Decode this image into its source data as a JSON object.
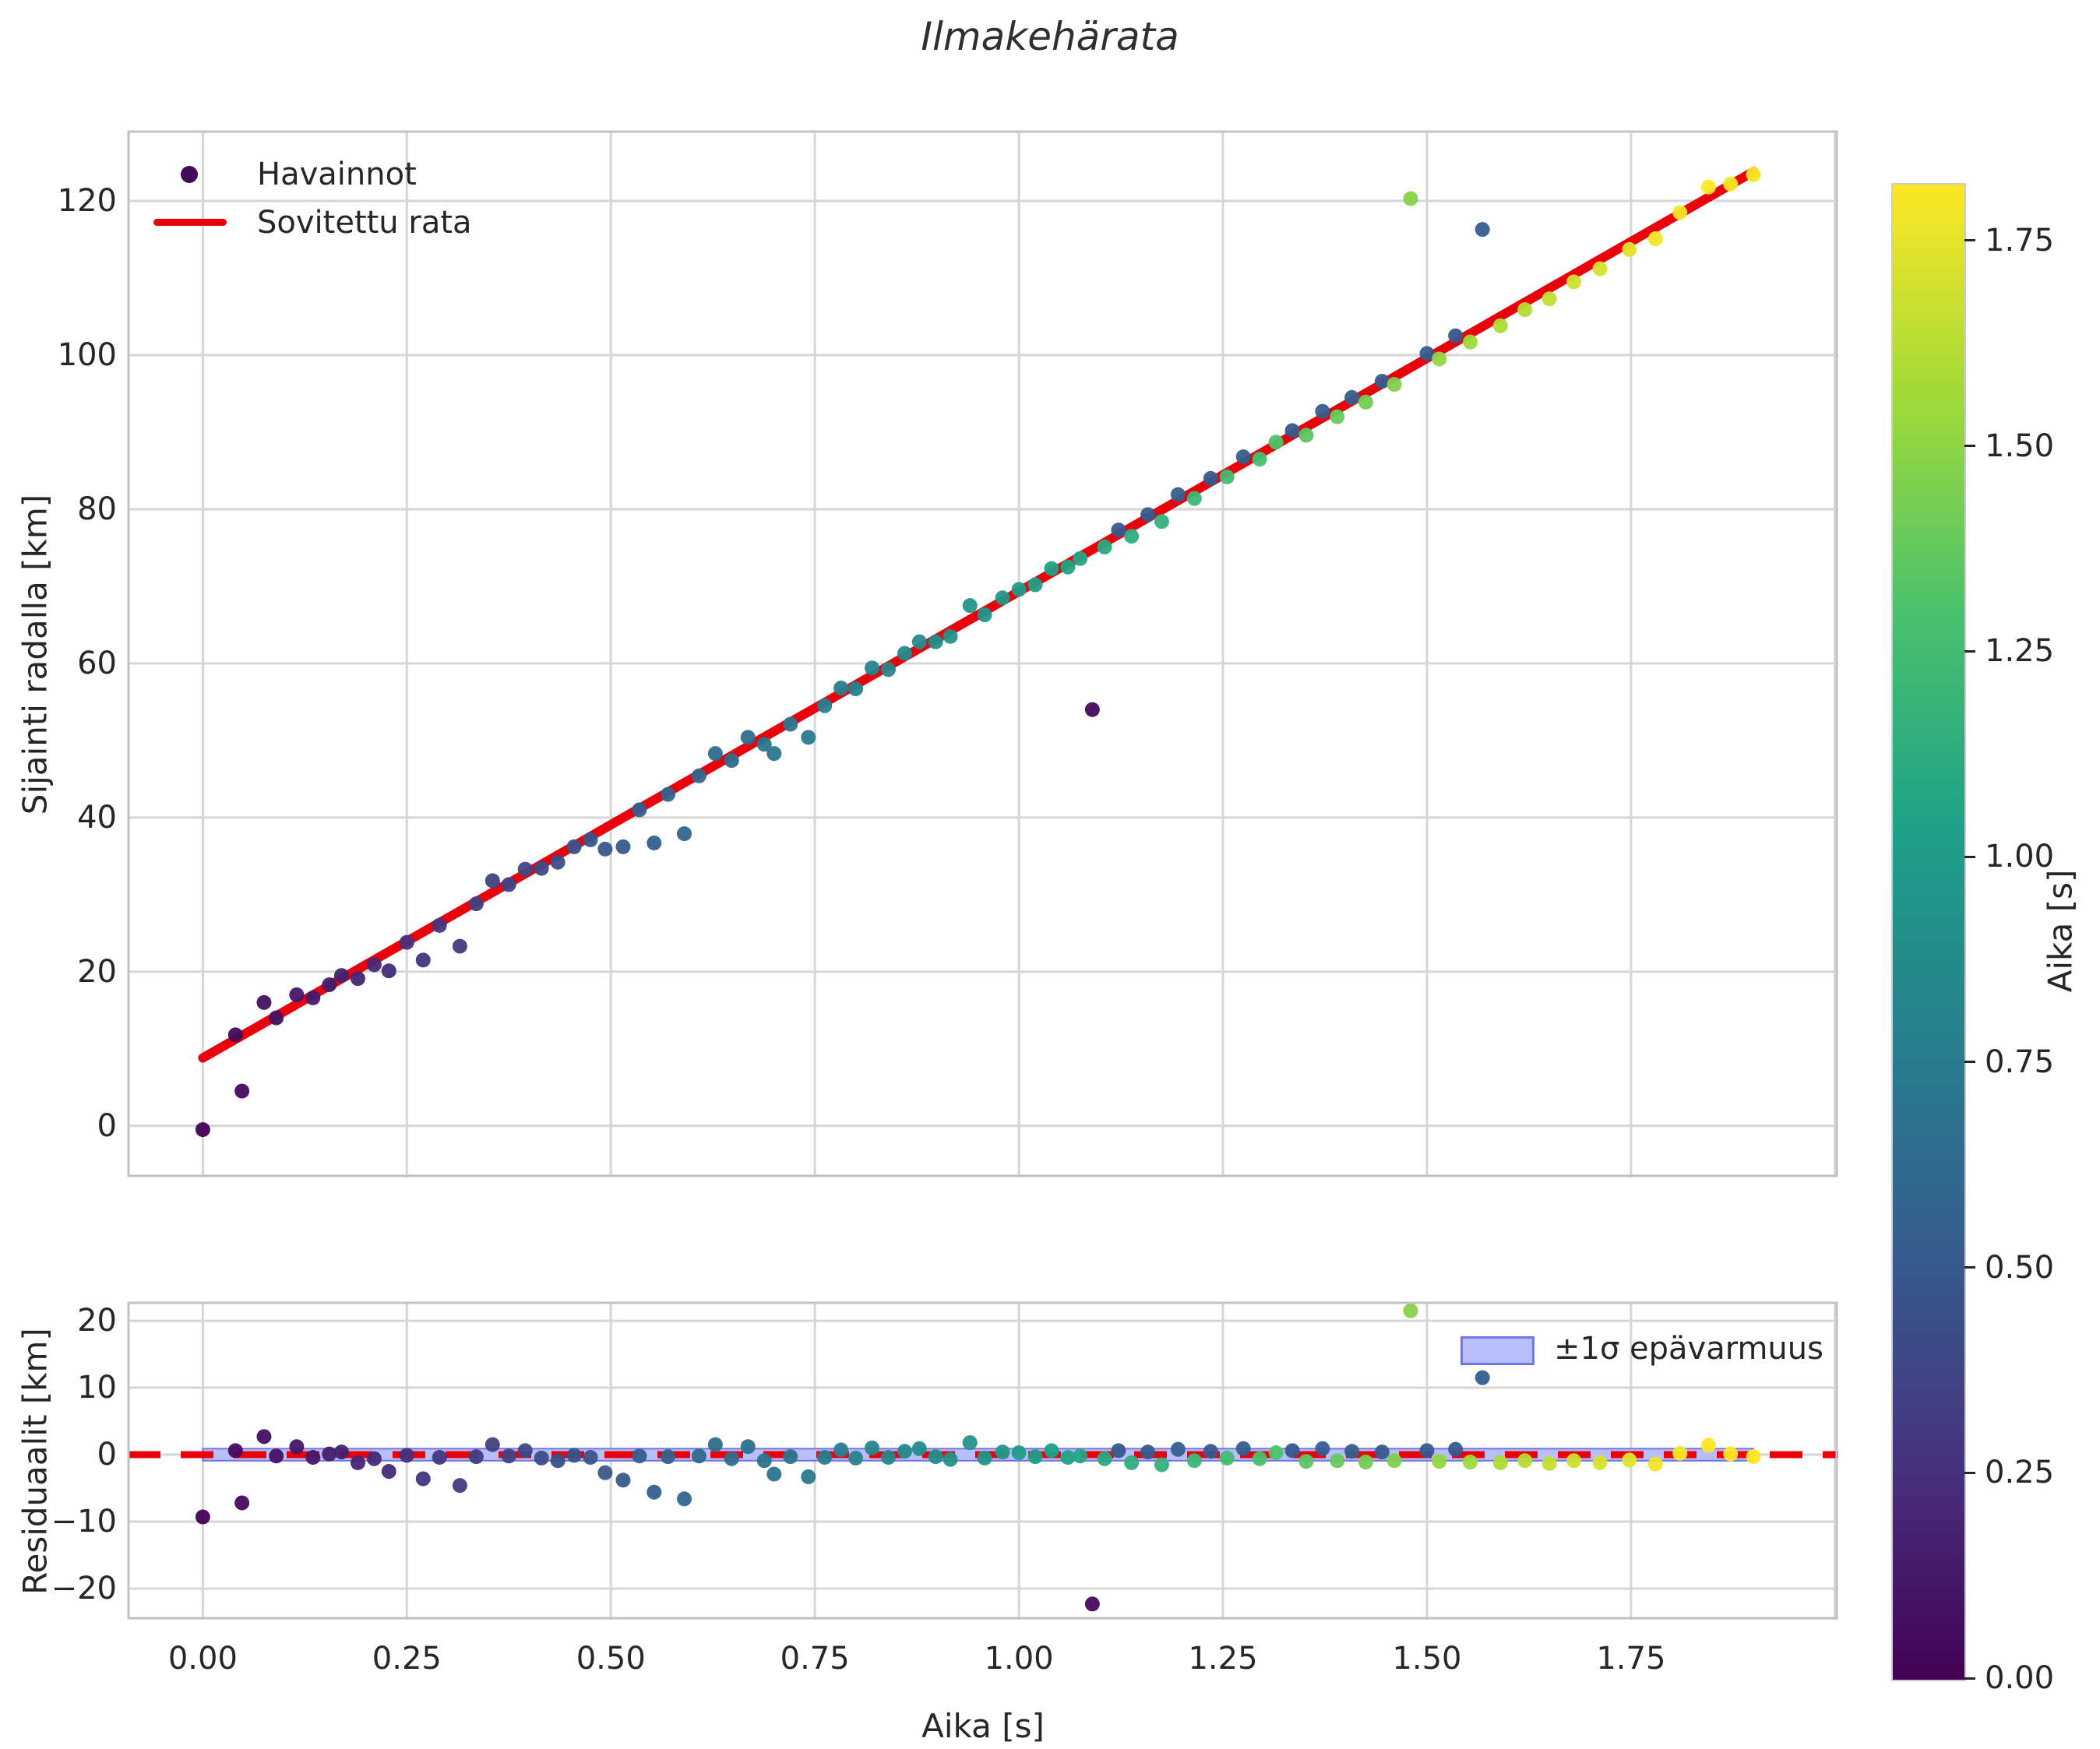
{
  "title": "Ilmakehärata",
  "labels": {
    "main_ylabel": "Sijainti radalla [km]",
    "residual_ylabel": "Residuaalit [km]",
    "xlabel": "Aika [s]",
    "colorbar_label": "Aika [s]"
  },
  "legend": {
    "observations": "Havainnot",
    "fit": "Sovitettu rata",
    "band": "±1σ epävarmuus"
  },
  "colors": {
    "fit_line": "#e8000b",
    "zero_line": "#e8000b",
    "band_fill": "#b8bef9",
    "band_edge": "#7076e8",
    "grid": "#d6d6d6",
    "spine": "#c2c2c2",
    "text": "#262626",
    "legend_marker": "#440c56",
    "background": "#ffffff"
  },
  "chart_data": {
    "type": "scatter",
    "suptitle": "Ilmakehärata",
    "viridis_stops": [
      "#440154",
      "#46327e",
      "#365c8d",
      "#277f8e",
      "#1fa187",
      "#4ac16d",
      "#a0da39",
      "#fde725"
    ],
    "color_vmin": 0,
    "color_vmax": 1.82,
    "points_fields": [
      "t_s",
      "position_km",
      "residual_km",
      "color_value_null_means_t"
    ],
    "points": [
      [
        0.0,
        -0.5,
        -9.3,
        null
      ],
      [
        0.04,
        11.8,
        0.6,
        null
      ],
      [
        0.048,
        4.5,
        -7.2,
        null
      ],
      [
        0.075,
        16.0,
        2.7,
        null
      ],
      [
        0.09,
        14.0,
        -0.2,
        null
      ],
      [
        0.115,
        17.0,
        1.2,
        null
      ],
      [
        0.135,
        16.6,
        -0.4,
        null
      ],
      [
        0.155,
        18.3,
        0.1,
        null
      ],
      [
        0.17,
        19.5,
        0.4,
        null
      ],
      [
        0.19,
        19.1,
        -1.2,
        null
      ],
      [
        0.21,
        20.9,
        -0.6,
        null
      ],
      [
        0.228,
        20.1,
        -2.5,
        null
      ],
      [
        0.25,
        23.8,
        -0.1,
        null
      ],
      [
        0.27,
        21.5,
        -3.6,
        null
      ],
      [
        0.29,
        26.0,
        -0.4,
        null
      ],
      [
        0.315,
        23.3,
        -4.6,
        null
      ],
      [
        0.335,
        28.8,
        -0.3,
        null
      ],
      [
        0.355,
        31.8,
        1.5,
        null
      ],
      [
        0.375,
        31.3,
        -0.2,
        null
      ],
      [
        0.395,
        33.3,
        0.6,
        null
      ],
      [
        0.415,
        33.4,
        -0.5,
        null
      ],
      [
        0.435,
        34.2,
        -0.9,
        null
      ],
      [
        0.455,
        36.2,
        -0.1,
        null
      ],
      [
        0.475,
        37.1,
        -0.4,
        null
      ],
      [
        0.493,
        35.9,
        -2.7,
        null
      ],
      [
        0.515,
        36.2,
        -3.8,
        null
      ],
      [
        0.535,
        41.0,
        -0.2,
        null
      ],
      [
        0.553,
        36.7,
        -5.6,
        null
      ],
      [
        0.57,
        43.0,
        -0.3,
        null
      ],
      [
        0.59,
        37.9,
        -6.6,
        null
      ],
      [
        0.608,
        45.4,
        -0.2,
        null
      ],
      [
        0.628,
        48.3,
        1.5,
        null
      ],
      [
        0.648,
        47.4,
        -0.6,
        null
      ],
      [
        0.668,
        50.4,
        1.2,
        null
      ],
      [
        0.688,
        49.5,
        -0.9,
        null
      ],
      [
        0.7,
        48.3,
        -2.9,
        null
      ],
      [
        0.72,
        52.1,
        -0.3,
        null
      ],
      [
        0.742,
        50.4,
        -3.3,
        null
      ],
      [
        0.762,
        54.5,
        -0.4,
        null
      ],
      [
        0.782,
        56.8,
        0.7,
        null
      ],
      [
        0.8,
        56.7,
        -0.5,
        null
      ],
      [
        0.82,
        59.4,
        1.0,
        null
      ],
      [
        0.84,
        59.2,
        -0.4,
        null
      ],
      [
        0.86,
        61.3,
        0.5,
        null
      ],
      [
        0.878,
        62.8,
        0.9,
        null
      ],
      [
        0.898,
        62.8,
        -0.3,
        null
      ],
      [
        0.916,
        63.5,
        -0.7,
        null
      ],
      [
        0.94,
        67.5,
        1.8,
        null
      ],
      [
        0.958,
        66.3,
        -0.5,
        null
      ],
      [
        0.98,
        68.5,
        0.4,
        null
      ],
      [
        1.0,
        69.6,
        0.3,
        null
      ],
      [
        1.02,
        70.2,
        -0.3,
        null
      ],
      [
        1.04,
        72.3,
        0.6,
        null
      ],
      [
        1.06,
        72.5,
        -0.4,
        null
      ],
      [
        1.075,
        73.6,
        -0.2,
        null
      ],
      [
        1.09,
        54.0,
        -22.3,
        0.05
      ],
      [
        1.105,
        75.1,
        -0.6,
        null
      ],
      [
        1.122,
        77.3,
        0.6,
        0.5
      ],
      [
        1.138,
        76.5,
        -1.2,
        null
      ],
      [
        1.158,
        79.3,
        0.4,
        0.52
      ],
      [
        1.175,
        78.4,
        -1.5,
        null
      ],
      [
        1.195,
        81.9,
        0.8,
        0.55
      ],
      [
        1.215,
        81.4,
        -0.9,
        null
      ],
      [
        1.235,
        84.0,
        0.5,
        0.5
      ],
      [
        1.255,
        84.2,
        -0.5,
        null
      ],
      [
        1.275,
        86.8,
        0.9,
        0.53
      ],
      [
        1.295,
        86.5,
        -0.6,
        null
      ],
      [
        1.315,
        88.7,
        0.3,
        null
      ],
      [
        1.335,
        90.2,
        0.6,
        0.5
      ],
      [
        1.352,
        89.6,
        -1.0,
        null
      ],
      [
        1.372,
        92.7,
        0.9,
        0.52
      ],
      [
        1.39,
        92.0,
        -0.9,
        null
      ],
      [
        1.408,
        94.5,
        0.5,
        0.55
      ],
      [
        1.425,
        93.9,
        -1.1,
        null
      ],
      [
        1.445,
        96.6,
        0.4,
        0.5
      ],
      [
        1.46,
        96.2,
        -0.9,
        null
      ],
      [
        1.48,
        120.3,
        21.5,
        null
      ],
      [
        1.5,
        100.2,
        0.6,
        0.52
      ],
      [
        1.515,
        99.5,
        -1.0,
        null
      ],
      [
        1.535,
        102.5,
        0.8,
        0.5
      ],
      [
        1.553,
        101.7,
        -1.1,
        null
      ],
      [
        1.568,
        116.3,
        11.5,
        0.55
      ],
      [
        1.59,
        103.8,
        -1.2,
        null
      ],
      [
        1.62,
        105.9,
        -0.9,
        null
      ],
      [
        1.65,
        107.3,
        -1.3,
        null
      ],
      [
        1.68,
        109.5,
        -0.9,
        null
      ],
      [
        1.712,
        111.2,
        -1.2,
        null
      ],
      [
        1.748,
        113.7,
        -0.8,
        null
      ],
      [
        1.78,
        115.1,
        -1.4,
        null
      ],
      [
        1.81,
        118.5,
        0.2,
        null
      ],
      [
        1.845,
        121.8,
        1.4,
        null
      ],
      [
        1.872,
        122.2,
        0.1,
        null
      ],
      [
        1.9,
        123.4,
        -0.3,
        null
      ]
    ],
    "fit_line": {
      "x": [
        0.0,
        1.9
      ],
      "y": [
        8.8,
        123.8
      ]
    },
    "uncertainty_band": {
      "half_width": 0.9,
      "x": [
        0.0,
        1.9
      ]
    },
    "main_panel": {
      "ylabel": "Sijainti radalla [km]",
      "xlim": [
        -0.092,
        2.004
      ],
      "ylim": [
        -6.7,
        129.1
      ],
      "yticks": [
        0,
        20,
        40,
        60,
        80,
        100,
        120
      ],
      "ytick_labels": [
        "0",
        "20",
        "40",
        "60",
        "80",
        "100",
        "120"
      ],
      "xgrid": [
        0,
        0.25,
        0.5,
        0.75,
        1.0,
        1.25,
        1.5,
        1.75,
        2.0
      ],
      "grid": true
    },
    "residual_panel": {
      "ylabel": "Residuaalit [km]",
      "xlim": [
        -0.092,
        2.004
      ],
      "ylim": [
        -24.65,
        22.8
      ],
      "yticks": [
        -20,
        -10,
        0,
        10,
        20
      ],
      "ytick_labels": [
        "−20",
        "−10",
        "0",
        "10",
        "20"
      ],
      "xticks": [
        0,
        0.25,
        0.5,
        0.75,
        1.0,
        1.25,
        1.5,
        1.75
      ],
      "xtick_labels": [
        "0.00",
        "0.25",
        "0.50",
        "0.75",
        "1.00",
        "1.25",
        "1.50",
        "1.75"
      ],
      "xgrid": [
        0,
        0.25,
        0.5,
        0.75,
        1.0,
        1.25,
        1.5,
        1.75,
        2.0
      ],
      "grid": true
    },
    "colorbar": {
      "label": "Aika [s]",
      "ticks": [
        0,
        0.25,
        0.5,
        0.75,
        1.0,
        1.25,
        1.5,
        1.75
      ],
      "tick_labels": [
        "0.00",
        "0.25",
        "0.50",
        "0.75",
        "1.00",
        "1.25",
        "1.50",
        "1.75"
      ]
    }
  }
}
